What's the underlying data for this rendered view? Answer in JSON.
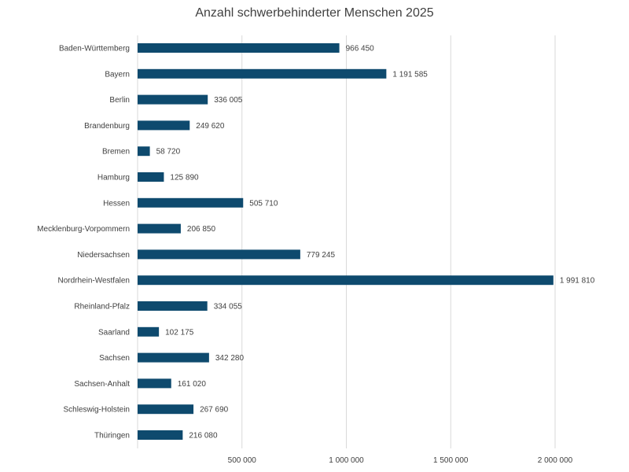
{
  "chart_data": {
    "type": "bar",
    "orientation": "horizontal",
    "title": "Anzahl schwerbehinderter Menschen 2025",
    "categories": [
      "Baden-Württemberg",
      "Bayern",
      "Berlin",
      "Brandenburg",
      "Bremen",
      "Hamburg",
      "Hessen",
      "Mecklenburg-Vorpommern",
      "Niedersachsen",
      "Nordrhein-Westfalen",
      "Rheinland-Pfalz",
      "Saarland",
      "Sachsen",
      "Sachsen-Anhalt",
      "Schleswig-Holstein",
      "Thüringen"
    ],
    "values": [
      966450,
      1191585,
      336005,
      249620,
      58720,
      125890,
      505710,
      206850,
      779245,
      1991810,
      334055,
      102175,
      342280,
      161020,
      267690,
      216080
    ],
    "data_labels": [
      "966 450",
      "1 191 585",
      "336 005",
      "249 620",
      "58 720",
      "125 890",
      "505 710",
      "206 850",
      "779 245",
      "1 991 810",
      "334 055",
      "102 175",
      "342 280",
      "161 020",
      "267 690",
      "216 080"
    ],
    "xticks": [
      {
        "value": 500000,
        "label": "500 000"
      },
      {
        "value": 1000000,
        "label": "1 000 000"
      },
      {
        "value": 1500000,
        "label": "1 500 000"
      },
      {
        "value": 2000000,
        "label": "2 000 000"
      }
    ],
    "xlim": [
      0,
      2000000
    ],
    "xlabel": "",
    "ylabel": "",
    "grid": "vertical",
    "legend": "none",
    "colors": {
      "bar": "#0e4a6e",
      "grid": "#d9d9d9",
      "label": "#404040",
      "title": "#404040"
    }
  }
}
